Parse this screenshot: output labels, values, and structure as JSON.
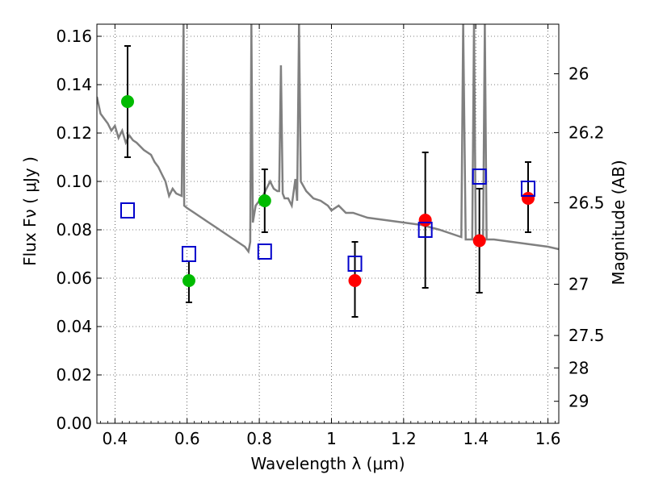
{
  "chart_data": {
    "type": "scatter",
    "xlabel": "Wavelength  λ (μm)",
    "ylabel": "Flux  Fν  ( μJy )",
    "ylabel_right": "Magnitude (AB)",
    "xlim": [
      0.35,
      1.63
    ],
    "ylim": [
      0.0,
      0.165
    ],
    "grid": true,
    "x_ticks": [
      0.4,
      0.6,
      0.8,
      1.0,
      1.2,
      1.4,
      1.6
    ],
    "x_tick_labels": [
      "0.4",
      "0.6",
      "0.8",
      "1",
      "1.2",
      "1.4",
      "1.6"
    ],
    "y_ticks": [
      0.0,
      0.02,
      0.04,
      0.06,
      0.08,
      0.1,
      0.12,
      0.14,
      0.16
    ],
    "y_tick_labels": [
      "0.00",
      "0.02",
      "0.04",
      "0.06",
      "0.08",
      "0.10",
      "0.12",
      "0.14",
      "0.16"
    ],
    "right_ticks": [
      {
        "label": "26",
        "flux": 0.1445
      },
      {
        "label": "26.2",
        "flux": 0.1202
      },
      {
        "label": "26.5",
        "flux": 0.0912
      },
      {
        "label": "27",
        "flux": 0.0575
      },
      {
        "label": "27.5",
        "flux": 0.0363
      },
      {
        "label": "28",
        "flux": 0.0229
      },
      {
        "label": "29",
        "flux": 0.0091
      }
    ],
    "series": [
      {
        "color": "#00bb00",
        "marker": "circle",
        "points": [
          {
            "x": 0.435,
            "y": 0.133,
            "err_lo": 0.11,
            "err_hi": 0.156
          },
          {
            "x": 0.605,
            "y": 0.059,
            "err_lo": 0.05,
            "err_hi": 0.067
          },
          {
            "x": 0.815,
            "y": 0.092,
            "err_lo": 0.079,
            "err_hi": 0.105
          }
        ]
      },
      {
        "color": "#ff0000",
        "marker": "circle",
        "points": [
          {
            "x": 1.065,
            "y": 0.059,
            "err_lo": 0.044,
            "err_hi": 0.075
          },
          {
            "x": 1.26,
            "y": 0.084,
            "err_lo": 0.056,
            "err_hi": 0.112
          },
          {
            "x": 1.41,
            "y": 0.0755,
            "err_lo": 0.054,
            "err_hi": 0.097
          },
          {
            "x": 1.545,
            "y": 0.093,
            "err_lo": 0.079,
            "err_hi": 0.108
          }
        ]
      },
      {
        "color": "#0000cc",
        "marker": "open-square",
        "points": [
          {
            "x": 0.435,
            "y": 0.088
          },
          {
            "x": 0.605,
            "y": 0.07
          },
          {
            "x": 0.815,
            "y": 0.071
          },
          {
            "x": 1.065,
            "y": 0.066
          },
          {
            "x": 1.26,
            "y": 0.08
          },
          {
            "x": 1.41,
            "y": 0.102
          },
          {
            "x": 1.545,
            "y": 0.097
          }
        ]
      },
      {
        "color": "#808080",
        "marker": "line",
        "points": [
          [
            0.35,
            0.135
          ],
          [
            0.36,
            0.128
          ],
          [
            0.37,
            0.126
          ],
          [
            0.38,
            0.124
          ],
          [
            0.39,
            0.121
          ],
          [
            0.4,
            0.123
          ],
          [
            0.41,
            0.118
          ],
          [
            0.42,
            0.121
          ],
          [
            0.43,
            0.116
          ],
          [
            0.44,
            0.119
          ],
          [
            0.45,
            0.117
          ],
          [
            0.46,
            0.116
          ],
          [
            0.48,
            0.113
          ],
          [
            0.5,
            0.111
          ],
          [
            0.51,
            0.108
          ],
          [
            0.52,
            0.106
          ],
          [
            0.53,
            0.103
          ],
          [
            0.54,
            0.1
          ],
          [
            0.55,
            0.094
          ],
          [
            0.56,
            0.097
          ],
          [
            0.57,
            0.095
          ],
          [
            0.585,
            0.094
          ],
          [
            0.59,
            0.165
          ],
          [
            0.592,
            0.09
          ],
          [
            0.6,
            0.089
          ],
          [
            0.62,
            0.087
          ],
          [
            0.64,
            0.085
          ],
          [
            0.66,
            0.083
          ],
          [
            0.68,
            0.081
          ],
          [
            0.7,
            0.079
          ],
          [
            0.72,
            0.077
          ],
          [
            0.74,
            0.075
          ],
          [
            0.76,
            0.073
          ],
          [
            0.77,
            0.071
          ],
          [
            0.775,
            0.075
          ],
          [
            0.778,
            0.165
          ],
          [
            0.782,
            0.083
          ],
          [
            0.79,
            0.09
          ],
          [
            0.8,
            0.092
          ],
          [
            0.81,
            0.094
          ],
          [
            0.82,
            0.097
          ],
          [
            0.83,
            0.1
          ],
          [
            0.84,
            0.097
          ],
          [
            0.85,
            0.096
          ],
          [
            0.855,
            0.096
          ],
          [
            0.86,
            0.148
          ],
          [
            0.865,
            0.095
          ],
          [
            0.87,
            0.093
          ],
          [
            0.88,
            0.093
          ],
          [
            0.89,
            0.09
          ],
          [
            0.9,
            0.101
          ],
          [
            0.905,
            0.092
          ],
          [
            0.91,
            0.165
          ],
          [
            0.915,
            0.1
          ],
          [
            0.93,
            0.096
          ],
          [
            0.95,
            0.093
          ],
          [
            0.97,
            0.092
          ],
          [
            0.99,
            0.09
          ],
          [
            1.0,
            0.088
          ],
          [
            1.02,
            0.09
          ],
          [
            1.04,
            0.087
          ],
          [
            1.06,
            0.087
          ],
          [
            1.08,
            0.086
          ],
          [
            1.1,
            0.085
          ],
          [
            1.15,
            0.084
          ],
          [
            1.2,
            0.083
          ],
          [
            1.25,
            0.082
          ],
          [
            1.3,
            0.08
          ],
          [
            1.34,
            0.078
          ],
          [
            1.36,
            0.077
          ],
          [
            1.365,
            0.165
          ],
          [
            1.372,
            0.076
          ],
          [
            1.38,
            0.076
          ],
          [
            1.39,
            0.076
          ],
          [
            1.395,
            0.165
          ],
          [
            1.4,
            0.076
          ],
          [
            1.42,
            0.076
          ],
          [
            1.425,
            0.165
          ],
          [
            1.43,
            0.076
          ],
          [
            1.45,
            0.076
          ],
          [
            1.5,
            0.075
          ],
          [
            1.55,
            0.074
          ],
          [
            1.6,
            0.073
          ],
          [
            1.63,
            0.072
          ]
        ]
      }
    ]
  }
}
